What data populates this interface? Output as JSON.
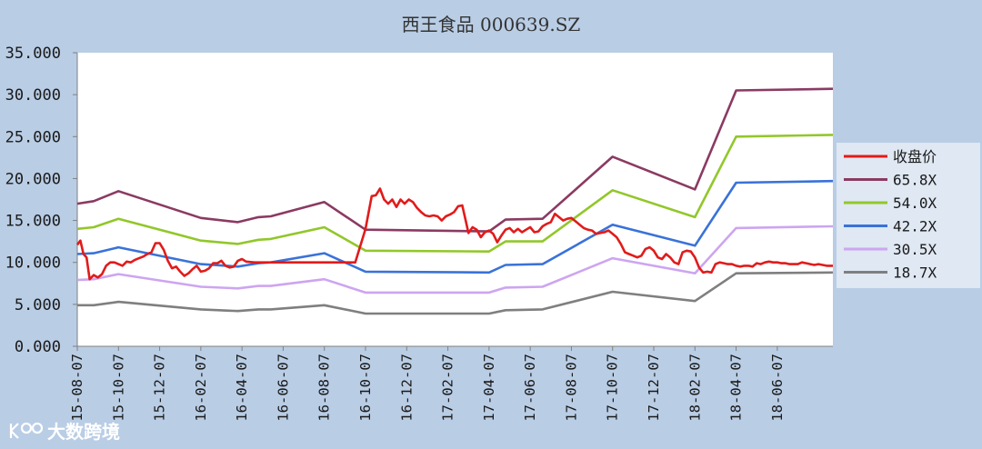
{
  "chart_data": {
    "type": "line",
    "title": "西王食品 000639.SZ",
    "xlabel": "",
    "ylabel": "",
    "ylim": [
      0,
      35
    ],
    "yticks": [
      "0.000",
      "5.000",
      "10.000",
      "15.000",
      "20.000",
      "25.000",
      "30.000",
      "35.000"
    ],
    "x_range": [
      0,
      36.7
    ],
    "xticks": [
      {
        "label": "15-08-07",
        "x": 0
      },
      {
        "label": "15-10-07",
        "x": 2
      },
      {
        "label": "15-12-07",
        "x": 4
      },
      {
        "label": "16-02-07",
        "x": 6
      },
      {
        "label": "16-04-07",
        "x": 8
      },
      {
        "label": "16-06-07",
        "x": 10
      },
      {
        "label": "16-08-07",
        "x": 12
      },
      {
        "label": "16-10-07",
        "x": 14
      },
      {
        "label": "16-12-07",
        "x": 16
      },
      {
        "label": "17-02-07",
        "x": 18
      },
      {
        "label": "17-04-07",
        "x": 20
      },
      {
        "label": "17-06-07",
        "x": 22
      },
      {
        "label": "17-08-07",
        "x": 24
      },
      {
        "label": "17-10-07",
        "x": 26
      },
      {
        "label": "17-12-07",
        "x": 28
      },
      {
        "label": "18-02-07",
        "x": 30
      },
      {
        "label": "18-04-07",
        "x": 32
      },
      {
        "label": "18-06-07",
        "x": 34
      }
    ],
    "grid": false,
    "legend_position": "right",
    "series": [
      {
        "name": "收盘价",
        "color": "#e11b1b",
        "points": [
          [
            0,
            12.1
          ],
          [
            0.15,
            12.6
          ],
          [
            0.3,
            11.0
          ],
          [
            0.45,
            10.6
          ],
          [
            0.6,
            8.0
          ],
          [
            0.8,
            8.5
          ],
          [
            1.0,
            8.2
          ],
          [
            1.2,
            8.6
          ],
          [
            1.4,
            9.6
          ],
          [
            1.6,
            10.0
          ],
          [
            1.8,
            10.0
          ],
          [
            2.0,
            9.8
          ],
          [
            2.2,
            9.6
          ],
          [
            2.4,
            10.1
          ],
          [
            2.6,
            10.0
          ],
          [
            2.8,
            10.3
          ],
          [
            3.0,
            10.5
          ],
          [
            3.2,
            10.7
          ],
          [
            3.4,
            11.0
          ],
          [
            3.6,
            11.2
          ],
          [
            3.8,
            12.3
          ],
          [
            4.0,
            12.3
          ],
          [
            4.2,
            11.5
          ],
          [
            4.4,
            10.2
          ],
          [
            4.6,
            9.3
          ],
          [
            4.8,
            9.5
          ],
          [
            5.0,
            8.9
          ],
          [
            5.2,
            8.4
          ],
          [
            5.4,
            8.7
          ],
          [
            5.6,
            9.2
          ],
          [
            5.8,
            9.6
          ],
          [
            6.0,
            8.9
          ],
          [
            6.2,
            9.0
          ],
          [
            6.4,
            9.3
          ],
          [
            6.6,
            9.9
          ],
          [
            6.8,
            9.9
          ],
          [
            7.0,
            10.2
          ],
          [
            7.2,
            9.6
          ],
          [
            7.4,
            9.4
          ],
          [
            7.6,
            9.5
          ],
          [
            7.8,
            10.2
          ],
          [
            8.0,
            10.4
          ],
          [
            8.2,
            10.1
          ],
          [
            8.6,
            10.0
          ],
          [
            9.0,
            10.0
          ],
          [
            10,
            10.0
          ],
          [
            11,
            10.0
          ],
          [
            12,
            10.0
          ],
          [
            13,
            10.0
          ],
          [
            13.5,
            10.0
          ],
          [
            14.0,
            14.0
          ],
          [
            14.3,
            17.9
          ],
          [
            14.5,
            18.0
          ],
          [
            14.7,
            18.8
          ],
          [
            14.9,
            17.5
          ],
          [
            15.1,
            17.0
          ],
          [
            15.3,
            17.5
          ],
          [
            15.5,
            16.6
          ],
          [
            15.7,
            17.5
          ],
          [
            15.9,
            17.0
          ],
          [
            16.1,
            17.5
          ],
          [
            16.3,
            17.2
          ],
          [
            16.5,
            16.5
          ],
          [
            16.7,
            16.0
          ],
          [
            16.9,
            15.6
          ],
          [
            17.1,
            15.5
          ],
          [
            17.3,
            15.6
          ],
          [
            17.5,
            15.5
          ],
          [
            17.7,
            15.0
          ],
          [
            17.9,
            15.5
          ],
          [
            18.1,
            15.7
          ],
          [
            18.3,
            16.0
          ],
          [
            18.5,
            16.7
          ],
          [
            18.7,
            16.8
          ],
          [
            18.9,
            14.6
          ],
          [
            19.0,
            13.5
          ],
          [
            19.2,
            14.2
          ],
          [
            19.4,
            13.9
          ],
          [
            19.6,
            13.0
          ],
          [
            19.8,
            13.6
          ],
          [
            20.0,
            13.8
          ],
          [
            20.2,
            13.4
          ],
          [
            20.4,
            12.4
          ],
          [
            20.6,
            13.2
          ],
          [
            20.8,
            13.9
          ],
          [
            21.0,
            14.1
          ],
          [
            21.2,
            13.6
          ],
          [
            21.4,
            14.0
          ],
          [
            21.6,
            13.6
          ],
          [
            21.8,
            13.9
          ],
          [
            22.0,
            14.2
          ],
          [
            22.2,
            13.6
          ],
          [
            22.4,
            13.7
          ],
          [
            22.6,
            14.3
          ],
          [
            22.8,
            14.6
          ],
          [
            23.0,
            14.8
          ],
          [
            23.2,
            15.8
          ],
          [
            23.4,
            15.4
          ],
          [
            23.6,
            15.0
          ],
          [
            23.8,
            15.2
          ],
          [
            24.0,
            15.3
          ],
          [
            24.2,
            14.9
          ],
          [
            24.4,
            14.5
          ],
          [
            24.6,
            14.1
          ],
          [
            24.8,
            13.9
          ],
          [
            25.0,
            13.8
          ],
          [
            25.2,
            13.4
          ],
          [
            25.4,
            13.5
          ],
          [
            25.6,
            13.6
          ],
          [
            25.8,
            13.8
          ],
          [
            26.0,
            13.4
          ],
          [
            26.2,
            13.0
          ],
          [
            26.4,
            12.2
          ],
          [
            26.6,
            11.2
          ],
          [
            26.8,
            11.0
          ],
          [
            27.0,
            10.8
          ],
          [
            27.2,
            10.6
          ],
          [
            27.4,
            10.8
          ],
          [
            27.6,
            11.6
          ],
          [
            27.8,
            11.8
          ],
          [
            28.0,
            11.4
          ],
          [
            28.2,
            10.6
          ],
          [
            28.4,
            10.4
          ],
          [
            28.6,
            11.0
          ],
          [
            28.8,
            10.6
          ],
          [
            29.0,
            10.0
          ],
          [
            29.2,
            9.8
          ],
          [
            29.4,
            11.2
          ],
          [
            29.6,
            11.4
          ],
          [
            29.8,
            11.3
          ],
          [
            30.0,
            10.6
          ],
          [
            30.2,
            9.4
          ],
          [
            30.4,
            8.8
          ],
          [
            30.6,
            8.9
          ],
          [
            30.8,
            8.8
          ],
          [
            31.0,
            9.8
          ],
          [
            31.2,
            10.0
          ],
          [
            31.4,
            9.9
          ],
          [
            31.6,
            9.8
          ],
          [
            31.8,
            9.8
          ],
          [
            32.0,
            9.6
          ],
          [
            32.2,
            9.5
          ],
          [
            32.4,
            9.6
          ],
          [
            32.6,
            9.6
          ],
          [
            32.8,
            9.5
          ],
          [
            33.0,
            9.9
          ],
          [
            33.2,
            9.8
          ],
          [
            33.4,
            10.0
          ],
          [
            33.6,
            10.1
          ],
          [
            33.8,
            10.0
          ],
          [
            34.0,
            10.0
          ],
          [
            34.2,
            9.9
          ],
          [
            34.4,
            9.9
          ],
          [
            34.6,
            9.8
          ],
          [
            34.8,
            9.8
          ],
          [
            35.0,
            9.8
          ],
          [
            35.2,
            10.0
          ],
          [
            35.4,
            9.9
          ],
          [
            35.6,
            9.8
          ],
          [
            35.8,
            9.7
          ],
          [
            36.0,
            9.8
          ],
          [
            36.2,
            9.7
          ],
          [
            36.4,
            9.6
          ],
          [
            36.7,
            9.6
          ]
        ]
      },
      {
        "name": "65.8X",
        "color": "#8b3a62",
        "points": [
          [
            0,
            17.0
          ],
          [
            0.8,
            17.3
          ],
          [
            2.0,
            18.5
          ],
          [
            6.0,
            15.3
          ],
          [
            7.8,
            14.8
          ],
          [
            8.8,
            15.4
          ],
          [
            9.4,
            15.5
          ],
          [
            12.0,
            17.2
          ],
          [
            14.0,
            13.9
          ],
          [
            20.0,
            13.7
          ],
          [
            20.8,
            15.1
          ],
          [
            22.6,
            15.2
          ],
          [
            26.0,
            22.6
          ],
          [
            30.0,
            18.7
          ],
          [
            32.0,
            30.5
          ],
          [
            36.7,
            30.7
          ]
        ]
      },
      {
        "name": "54.0X",
        "color": "#92c72a",
        "points": [
          [
            0,
            14.0
          ],
          [
            0.8,
            14.2
          ],
          [
            2.0,
            15.2
          ],
          [
            6.0,
            12.6
          ],
          [
            7.8,
            12.2
          ],
          [
            8.8,
            12.7
          ],
          [
            9.4,
            12.8
          ],
          [
            12.0,
            14.2
          ],
          [
            14.0,
            11.4
          ],
          [
            20.0,
            11.3
          ],
          [
            20.8,
            12.5
          ],
          [
            22.6,
            12.5
          ],
          [
            26.0,
            18.6
          ],
          [
            30.0,
            15.4
          ],
          [
            32.0,
            25.0
          ],
          [
            36.7,
            25.2
          ]
        ]
      },
      {
        "name": "42.2X",
        "color": "#3a72d8",
        "points": [
          [
            0,
            11.0
          ],
          [
            0.8,
            11.1
          ],
          [
            2.0,
            11.8
          ],
          [
            6.0,
            9.8
          ],
          [
            7.8,
            9.5
          ],
          [
            8.8,
            9.9
          ],
          [
            9.4,
            10.0
          ],
          [
            12.0,
            11.1
          ],
          [
            14.0,
            8.9
          ],
          [
            20.0,
            8.8
          ],
          [
            20.8,
            9.7
          ],
          [
            22.6,
            9.8
          ],
          [
            26.0,
            14.5
          ],
          [
            30.0,
            12.0
          ],
          [
            32.0,
            19.5
          ],
          [
            36.7,
            19.7
          ]
        ]
      },
      {
        "name": "30.5X",
        "color": "#cda5f0",
        "points": [
          [
            0,
            7.9
          ],
          [
            0.8,
            8.0
          ],
          [
            2.0,
            8.6
          ],
          [
            6.0,
            7.1
          ],
          [
            7.8,
            6.9
          ],
          [
            8.8,
            7.2
          ],
          [
            9.4,
            7.2
          ],
          [
            12.0,
            8.0
          ],
          [
            14.0,
            6.4
          ],
          [
            20.0,
            6.4
          ],
          [
            20.8,
            7.0
          ],
          [
            22.6,
            7.1
          ],
          [
            26.0,
            10.5
          ],
          [
            30.0,
            8.7
          ],
          [
            32.0,
            14.1
          ],
          [
            36.7,
            14.3
          ]
        ]
      },
      {
        "name": "18.7X",
        "color": "#7f7f7f",
        "points": [
          [
            0,
            4.9
          ],
          [
            0.8,
            4.9
          ],
          [
            2.0,
            5.3
          ],
          [
            6.0,
            4.4
          ],
          [
            7.8,
            4.2
          ],
          [
            8.8,
            4.4
          ],
          [
            9.4,
            4.4
          ],
          [
            12.0,
            4.9
          ],
          [
            14.0,
            3.9
          ],
          [
            20.0,
            3.9
          ],
          [
            20.8,
            4.3
          ],
          [
            22.6,
            4.4
          ],
          [
            26.0,
            6.5
          ],
          [
            30.0,
            5.4
          ],
          [
            32.0,
            8.7
          ],
          [
            36.7,
            8.8
          ]
        ]
      }
    ]
  },
  "watermark": {
    "text": "大数跨境"
  }
}
